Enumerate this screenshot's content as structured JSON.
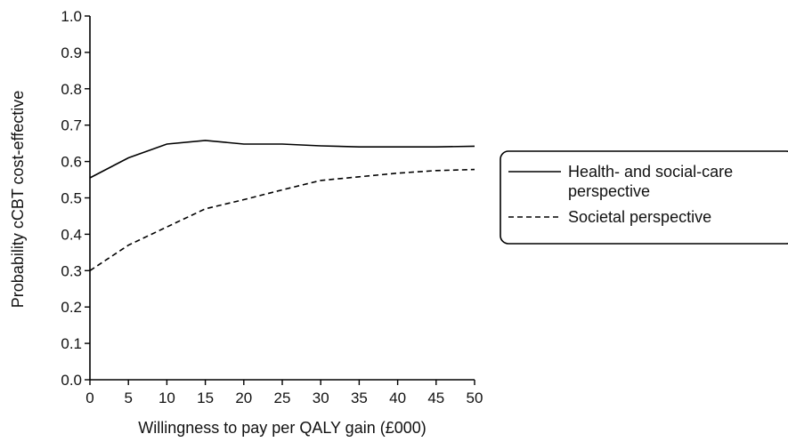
{
  "chart_data": {
    "type": "line",
    "title": "",
    "xlabel": "Willingness to pay per QALY gain (£000)",
    "ylabel": "Probability cCBT cost-effective",
    "xlim": [
      0,
      50
    ],
    "ylim": [
      0,
      1.0
    ],
    "x_ticks": [
      "0",
      "5",
      "10",
      "15",
      "20",
      "25",
      "30",
      "35",
      "40",
      "45",
      "50"
    ],
    "y_ticks": [
      "0.0",
      "0.1",
      "0.2",
      "0.3",
      "0.4",
      "0.5",
      "0.6",
      "0.7",
      "0.8",
      "0.9",
      "1.0"
    ],
    "grid": false,
    "legend_position": "right",
    "x": [
      0,
      5,
      10,
      15,
      20,
      25,
      30,
      35,
      40,
      45,
      50
    ],
    "series": [
      {
        "name": "Health- and social-care perspective",
        "name_lines": [
          "Health- and social-care",
          "perspective"
        ],
        "style": "solid",
        "color": "#000000",
        "values": [
          0.555,
          0.61,
          0.648,
          0.658,
          0.648,
          0.648,
          0.643,
          0.64,
          0.64,
          0.64,
          0.642
        ]
      },
      {
        "name": "Societal perspective",
        "name_lines": [
          "Societal perspective"
        ],
        "style": "dashed",
        "color": "#000000",
        "values": [
          0.3,
          0.37,
          0.42,
          0.47,
          0.495,
          0.522,
          0.548,
          0.558,
          0.568,
          0.575,
          0.578
        ]
      }
    ]
  }
}
